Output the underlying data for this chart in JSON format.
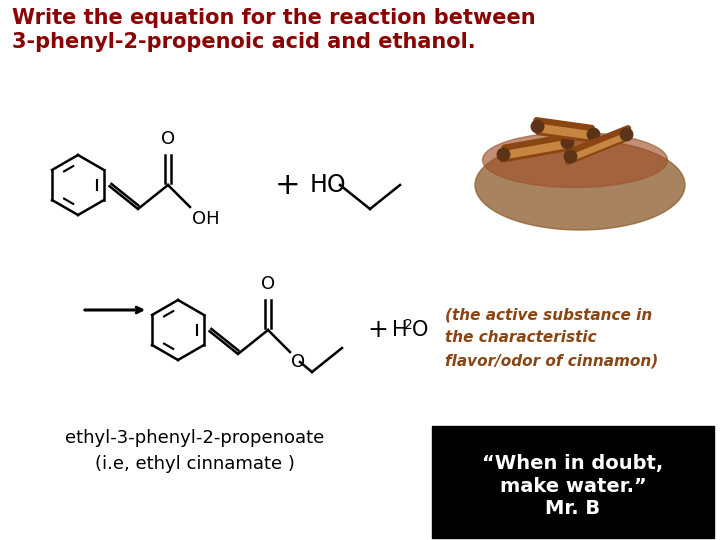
{
  "title_line1": "Write the equation for the reaction between",
  "title_line2": "3-phenyl-2-propenoic acid and ethanol.",
  "title_color": "#8B0000",
  "title_fontsize": 15,
  "bg_color": "#ffffff",
  "label1": "ethyl-3-phenyl-2-propenoate",
  "label2": "(i.e, ethyl cinnamate )",
  "label_fontsize": 13,
  "cinnamon_text_line1": "(the active substance in",
  "cinnamon_text_line2": "the characteristic",
  "cinnamon_text_line3": "flavor/odor of cinnamon)",
  "cinnamon_color": "#8B4513",
  "quote_text": "“When in doubt,\nmake water.”\nMr. B",
  "quote_bg": "#000000",
  "quote_color": "#ffffff",
  "quote_fontsize": 14
}
